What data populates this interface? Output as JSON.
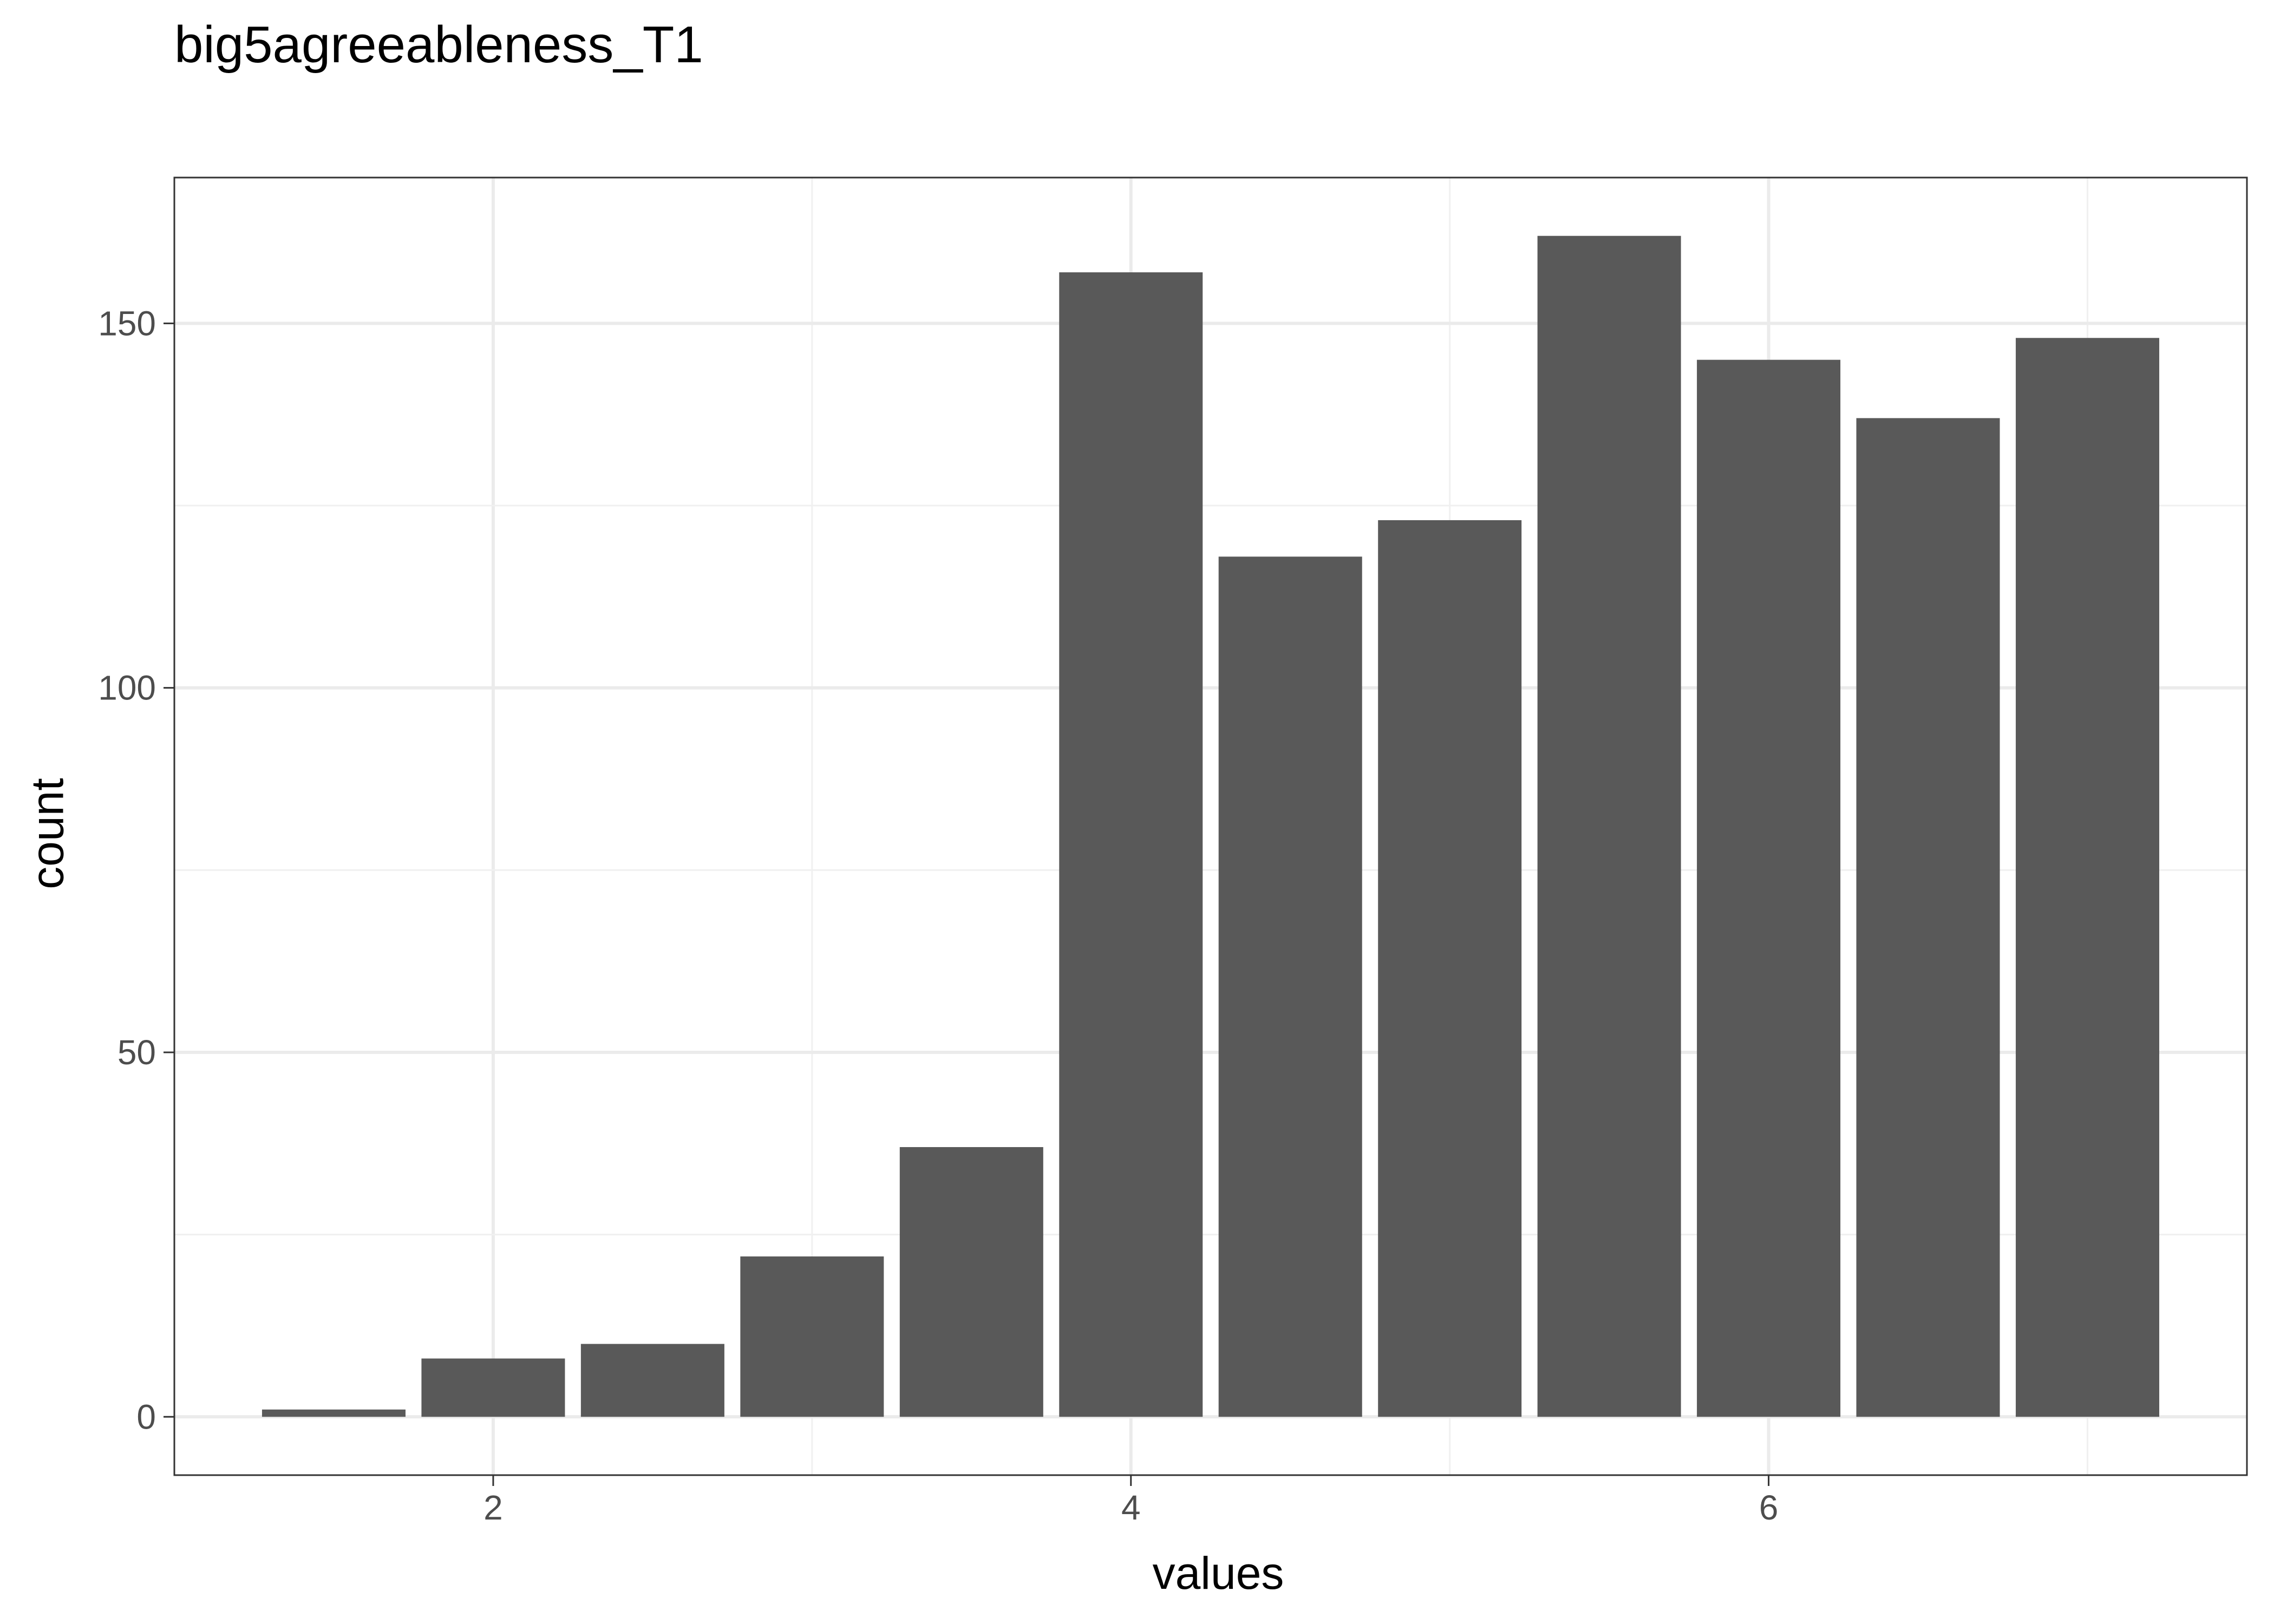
{
  "chart_data": {
    "type": "bar",
    "title": "big5agreeableness_T1",
    "xlabel": "values",
    "ylabel": "count",
    "x": [
      1.5,
      2.0,
      2.5,
      3.0,
      3.5,
      4.0,
      4.5,
      5.0,
      5.5,
      6.0,
      6.5,
      7.0
    ],
    "values": [
      1,
      8,
      10,
      22,
      37,
      157,
      118,
      123,
      162,
      145,
      137,
      148
    ],
    "xlim": [
      1.0,
      7.5
    ],
    "ylim": [
      -8,
      170
    ],
    "x_ticks": [
      2,
      4,
      6
    ],
    "y_ticks": [
      0,
      50,
      100,
      150
    ],
    "bar_color": "#595959",
    "grid": true,
    "theme": "bw"
  }
}
